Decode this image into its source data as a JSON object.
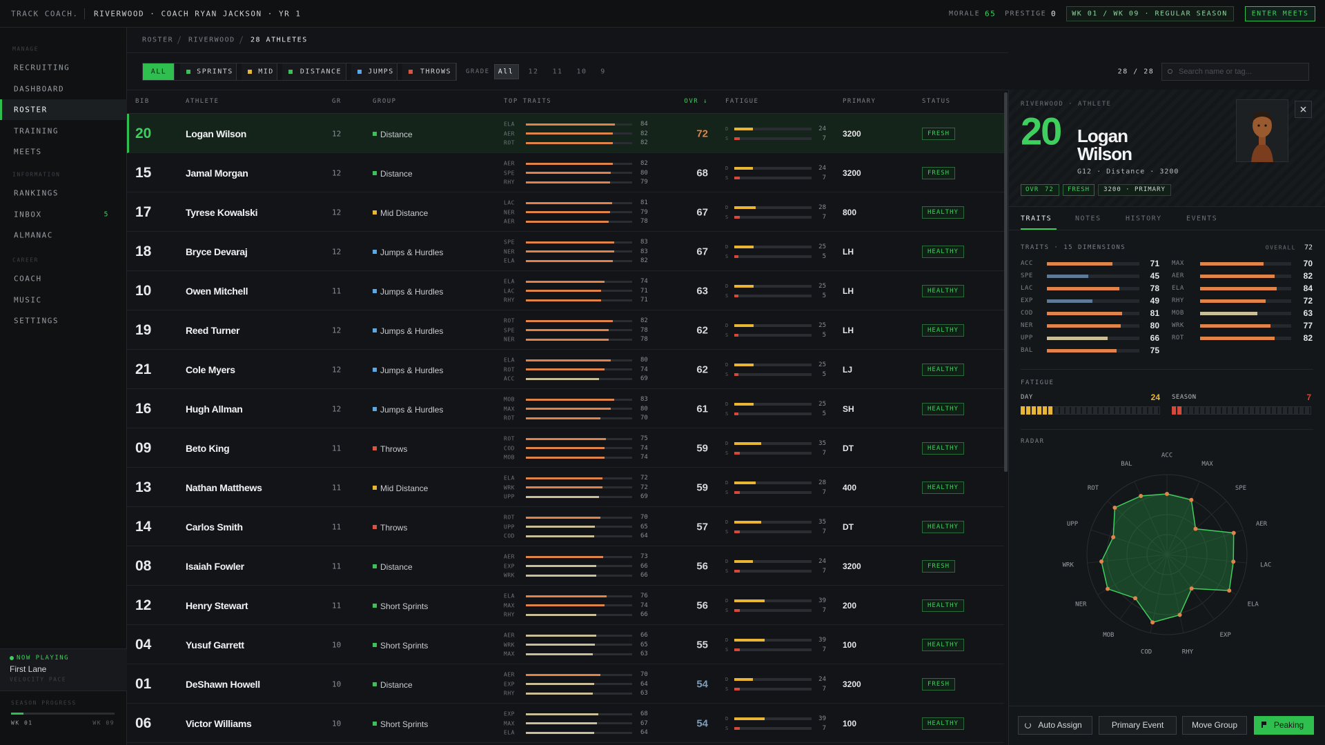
{
  "topbar": {
    "brand": "TRACK COACH.",
    "team": "RIVERWOOD · COACH RYAN JACKSON · YR 1",
    "morale_label": "MORALE",
    "morale": 65,
    "prestige_label": "PRESTIGE",
    "prestige": 0,
    "week": "WK 01 / WK 09 · REGULAR SEASON",
    "enter": "ENTER MEETS"
  },
  "sidebar": {
    "sections": [
      {
        "title": "MANAGE",
        "items": [
          {
            "label": "RECRUITING"
          },
          {
            "label": "DASHBOARD"
          },
          {
            "label": "ROSTER"
          },
          {
            "label": "TRAINING"
          },
          {
            "label": "MEETS"
          }
        ]
      },
      {
        "title": "INFORMATION",
        "items": [
          {
            "label": "RANKINGS"
          },
          {
            "label": "INBOX",
            "badge": 5
          },
          {
            "label": "ALMANAC"
          }
        ]
      },
      {
        "title": "CAREER",
        "items": [
          {
            "label": "COACH"
          },
          {
            "label": "MUSIC"
          },
          {
            "label": "SETTINGS"
          }
        ]
      }
    ],
    "now_playing": {
      "title": "NOW PLAYING",
      "track": "First Lane",
      "artist": "VELOCITY PACE"
    },
    "season": {
      "title": "SEASON PROGRESS",
      "start": "WK 01",
      "end": "WK 09"
    }
  },
  "breadcrumb": [
    "ROSTER",
    "RIVERWOOD",
    "28 ATHLETES"
  ],
  "filters": {
    "groups": [
      {
        "label": "ALL"
      },
      {
        "label": "SPRINTS",
        "color": "#3fbf5a"
      },
      {
        "label": "MID",
        "color": "#e8b634"
      },
      {
        "label": "DISTANCE",
        "color": "#3fbf5a"
      },
      {
        "label": "JUMPS",
        "color": "#5aa9e6"
      },
      {
        "label": "THROWS",
        "color": "#d9553f"
      }
    ],
    "grade_label": "GRADE",
    "grades": [
      "All",
      "12",
      "11",
      "10",
      "9"
    ],
    "count": "28 / 28",
    "search": "Search name or tag..."
  },
  "table": {
    "headers": [
      "BIB",
      "ATHLETE",
      "GR",
      "GROUP",
      "TOP TRAITS",
      "OVR ↓",
      "FATIGUE",
      "PRIMARY",
      "STATUS"
    ],
    "fatigue_labels": [
      "D",
      "S"
    ],
    "rows": [
      {
        "bib": "20",
        "name": "Logan Wilson",
        "grade": 12,
        "group": "Distance",
        "group_color": "#3fbf5a",
        "traits": [
          {
            "code": "ELA",
            "value": 84
          },
          {
            "code": "AER",
            "value": 82
          },
          {
            "code": "ROT",
            "value": 82
          }
        ],
        "ovr": 72,
        "day": 24,
        "season": 7,
        "primary": "3200",
        "status": "FRESH"
      },
      {
        "bib": "15",
        "name": "Jamal Morgan",
        "grade": 12,
        "group": "Distance",
        "group_color": "#3fbf5a",
        "traits": [
          {
            "code": "AER",
            "value": 82
          },
          {
            "code": "SPE",
            "value": 80
          },
          {
            "code": "RHY",
            "value": 79
          }
        ],
        "ovr": 68,
        "day": 24,
        "season": 7,
        "primary": "3200",
        "status": "FRESH"
      },
      {
        "bib": "17",
        "name": "Tyrese Kowalski",
        "grade": 12,
        "group": "Mid Distance",
        "group_color": "#e8b634",
        "traits": [
          {
            "code": "LAC",
            "value": 81
          },
          {
            "code": "NER",
            "value": 79
          },
          {
            "code": "AER",
            "value": 78
          }
        ],
        "ovr": 67,
        "day": 28,
        "season": 7,
        "primary": "800",
        "status": "HEALTHY"
      },
      {
        "bib": "18",
        "name": "Bryce Devaraj",
        "grade": 12,
        "group": "Jumps & Hurdles",
        "group_color": "#5aa9e6",
        "traits": [
          {
            "code": "SPE",
            "value": 83
          },
          {
            "code": "NER",
            "value": 83
          },
          {
            "code": "ELA",
            "value": 82
          }
        ],
        "ovr": 67,
        "day": 25,
        "season": 5,
        "primary": "LH",
        "status": "HEALTHY"
      },
      {
        "bib": "10",
        "name": "Owen Mitchell",
        "grade": 11,
        "group": "Jumps & Hurdles",
        "group_color": "#5aa9e6",
        "traits": [
          {
            "code": "ELA",
            "value": 74
          },
          {
            "code": "LAC",
            "value": 71
          },
          {
            "code": "RHY",
            "value": 71
          }
        ],
        "ovr": 63,
        "day": 25,
        "season": 5,
        "primary": "LH",
        "status": "HEALTHY"
      },
      {
        "bib": "19",
        "name": "Reed Turner",
        "grade": 12,
        "group": "Jumps & Hurdles",
        "group_color": "#5aa9e6",
        "traits": [
          {
            "code": "ROT",
            "value": 82
          },
          {
            "code": "SPE",
            "value": 78
          },
          {
            "code": "NER",
            "value": 78
          }
        ],
        "ovr": 62,
        "day": 25,
        "season": 5,
        "primary": "LH",
        "status": "HEALTHY"
      },
      {
        "bib": "21",
        "name": "Cole Myers",
        "grade": 12,
        "group": "Jumps & Hurdles",
        "group_color": "#5aa9e6",
        "traits": [
          {
            "code": "ELA",
            "value": 80
          },
          {
            "code": "ROT",
            "value": 74
          },
          {
            "code": "ACC",
            "value": 69
          }
        ],
        "ovr": 62,
        "day": 25,
        "season": 5,
        "primary": "LJ",
        "status": "HEALTHY"
      },
      {
        "bib": "16",
        "name": "Hugh Allman",
        "grade": 12,
        "group": "Jumps & Hurdles",
        "group_color": "#5aa9e6",
        "traits": [
          {
            "code": "MOB",
            "value": 83
          },
          {
            "code": "MAX",
            "value": 80
          },
          {
            "code": "ROT",
            "value": 70
          }
        ],
        "ovr": 61,
        "day": 25,
        "season": 5,
        "primary": "SH",
        "status": "HEALTHY"
      },
      {
        "bib": "09",
        "name": "Beto King",
        "grade": 11,
        "group": "Throws",
        "group_color": "#d9553f",
        "traits": [
          {
            "code": "ROT",
            "value": 75
          },
          {
            "code": "COD",
            "value": 74
          },
          {
            "code": "MOB",
            "value": 74
          }
        ],
        "ovr": 59,
        "day": 35,
        "season": 7,
        "primary": "DT",
        "status": "HEALTHY"
      },
      {
        "bib": "13",
        "name": "Nathan Matthews",
        "grade": 11,
        "group": "Mid Distance",
        "group_color": "#e8b634",
        "traits": [
          {
            "code": "ELA",
            "value": 72
          },
          {
            "code": "WRK",
            "value": 72
          },
          {
            "code": "UPP",
            "value": 69
          }
        ],
        "ovr": 59,
        "day": 28,
        "season": 7,
        "primary": "400",
        "status": "HEALTHY"
      },
      {
        "bib": "14",
        "name": "Carlos Smith",
        "grade": 11,
        "group": "Throws",
        "group_color": "#d9553f",
        "traits": [
          {
            "code": "ROT",
            "value": 70
          },
          {
            "code": "UPP",
            "value": 65
          },
          {
            "code": "COD",
            "value": 64
          }
        ],
        "ovr": 57,
        "day": 35,
        "season": 7,
        "primary": "DT",
        "status": "HEALTHY"
      },
      {
        "bib": "08",
        "name": "Isaiah Fowler",
        "grade": 11,
        "group": "Distance",
        "group_color": "#3fbf5a",
        "traits": [
          {
            "code": "AER",
            "value": 73
          },
          {
            "code": "EXP",
            "value": 66
          },
          {
            "code": "WRK",
            "value": 66
          }
        ],
        "ovr": 56,
        "day": 24,
        "season": 7,
        "primary": "3200",
        "status": "FRESH"
      },
      {
        "bib": "12",
        "name": "Henry Stewart",
        "grade": 11,
        "group": "Short Sprints",
        "group_color": "#3fbf5a",
        "traits": [
          {
            "code": "ELA",
            "value": 76
          },
          {
            "code": "MAX",
            "value": 74
          },
          {
            "code": "RHY",
            "value": 66
          }
        ],
        "ovr": 56,
        "day": 39,
        "season": 7,
        "primary": "200",
        "status": "HEALTHY"
      },
      {
        "bib": "04",
        "name": "Yusuf Garrett",
        "grade": 10,
        "group": "Short Sprints",
        "group_color": "#3fbf5a",
        "traits": [
          {
            "code": "AER",
            "value": 66
          },
          {
            "code": "WRK",
            "value": 65
          },
          {
            "code": "MAX",
            "value": 63
          }
        ],
        "ovr": 55,
        "day": 39,
        "season": 7,
        "primary": "100",
        "status": "HEALTHY"
      },
      {
        "bib": "01",
        "name": "DeShawn Howell",
        "grade": 10,
        "group": "Distance",
        "group_color": "#3fbf5a",
        "traits": [
          {
            "code": "AER",
            "value": 70
          },
          {
            "code": "EXP",
            "value": 64
          },
          {
            "code": "RHY",
            "value": 63
          }
        ],
        "ovr": 54,
        "day": 24,
        "season": 7,
        "primary": "3200",
        "status": "FRESH"
      },
      {
        "bib": "06",
        "name": "Victor Williams",
        "grade": 10,
        "group": "Short Sprints",
        "group_color": "#3fbf5a",
        "traits": [
          {
            "code": "EXP",
            "value": 68
          },
          {
            "code": "MAX",
            "value": 67
          },
          {
            "code": "ELA",
            "value": 64
          }
        ],
        "ovr": 54,
        "day": 39,
        "season": 7,
        "primary": "100",
        "status": "HEALTHY"
      }
    ]
  },
  "detail": {
    "kicker": "RIVERWOOD · ATHLETE",
    "bib": "20",
    "name": "Logan Wilson",
    "info": "G12 · Distance · 3200",
    "ovr_label": "OVR",
    "ovr": 72,
    "status": "FRESH",
    "primary_badge": "3200 · PRIMARY",
    "tabs": [
      "TRAITS",
      "NOTES",
      "HISTORY",
      "EVENTS"
    ],
    "traits_title": "TRAITS · 15 DIMENSIONS",
    "overall_label": "OVERALL",
    "overall": 72,
    "traits": [
      {
        "code": "ACC",
        "value": 71
      },
      {
        "code": "SPE",
        "value": 45
      },
      {
        "code": "LAC",
        "value": 78
      },
      {
        "code": "EXP",
        "value": 49
      },
      {
        "code": "COD",
        "value": 81
      },
      {
        "code": "NER",
        "value": 80
      },
      {
        "code": "UPP",
        "value": 66
      },
      {
        "code": "BAL",
        "value": 75
      },
      {
        "code": "MAX",
        "value": 70
      },
      {
        "code": "AER",
        "value": 82
      },
      {
        "code": "ELA",
        "value": 84
      },
      {
        "code": "RHY",
        "value": 72
      },
      {
        "code": "MOB",
        "value": 63
      },
      {
        "code": "WRK",
        "value": 77
      },
      {
        "code": "ROT",
        "value": 82
      }
    ],
    "fatigue_title": "FATIGUE",
    "day_label": "DAY",
    "day": 24,
    "season_label": "SEASON",
    "season": 7,
    "radar_title": "RADAR",
    "radar_axes": [
      "ACC",
      "MAX",
      "SPE",
      "AER",
      "LAC",
      "ELA",
      "EXP",
      "RHY",
      "COD",
      "MOB",
      "NER",
      "WRK",
      "UPP",
      "ROT",
      "BAL"
    ],
    "buttons": [
      "Auto Assign",
      "Primary Event",
      "Move Group",
      "Peaking"
    ]
  }
}
